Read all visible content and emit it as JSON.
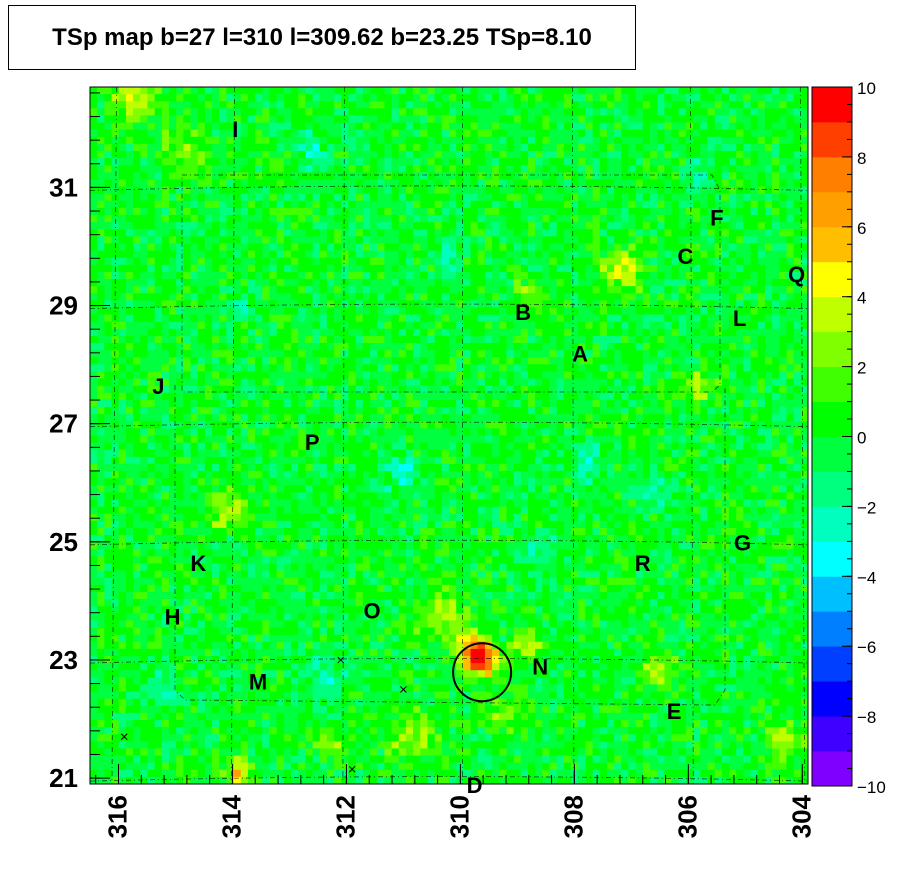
{
  "chart_data": {
    "type": "heatmap",
    "title": "TSp map b=27 l=310 l=309.62 b=23.25 TSp=8.10",
    "xlabel": "",
    "ylabel": "",
    "x_range": [
      316.5,
      303.9
    ],
    "y_range": [
      20.9,
      32.7
    ],
    "x_ticks": [
      316,
      314,
      312,
      310,
      308,
      306,
      304
    ],
    "x_tick_labels": [
      "316",
      "314",
      "312",
      "310",
      "308",
      "306",
      "304"
    ],
    "y_ticks": [
      21,
      23,
      25,
      27,
      29,
      31
    ],
    "y_tick_labels": [
      "21",
      "23",
      "25",
      "27",
      "29",
      "31"
    ],
    "z_range": [
      -10,
      10
    ],
    "z_ticks": [
      -10,
      -8,
      -6,
      -4,
      -2,
      0,
      2,
      4,
      6,
      8,
      10
    ],
    "z_tick_labels": [
      "−10",
      "−8",
      "−6",
      "−4",
      "−2",
      "0",
      "2",
      "4",
      "6",
      "8",
      "10"
    ],
    "palette": [
      "#7f00ff",
      "#3f00ff",
      "#0000ff",
      "#003fff",
      "#007fff",
      "#00bfff",
      "#00ffff",
      "#00ffbf",
      "#00ff7f",
      "#00ff3f",
      "#00ff00",
      "#3fff00",
      "#7fff00",
      "#bfff00",
      "#ffff00",
      "#ffbf00",
      "#ff9f00",
      "#ff7f00",
      "#ff3f00",
      "#ff0000"
    ],
    "background_tsp": 0,
    "hotspots": [
      {
        "l": 309.6,
        "b": 23.0,
        "tsp": 8.5,
        "sigma": 0.18
      },
      {
        "l": 309.8,
        "b": 23.15,
        "tsp": 7.0,
        "sigma": 0.2
      },
      {
        "l": 308.8,
        "b": 23.25,
        "tsp": 5.0,
        "sigma": 0.15
      },
      {
        "l": 310.3,
        "b": 23.8,
        "tsp": 3.5,
        "sigma": 0.3
      },
      {
        "l": 307.2,
        "b": 29.65,
        "tsp": 4.0,
        "sigma": 0.25
      },
      {
        "l": 315.7,
        "b": 32.5,
        "tsp": 4.0,
        "sigma": 0.25
      },
      {
        "l": 313.9,
        "b": 21.1,
        "tsp": 5.0,
        "sigma": 0.15
      },
      {
        "l": 312.3,
        "b": 21.6,
        "tsp": 3.5,
        "sigma": 0.15
      },
      {
        "l": 314.1,
        "b": 25.5,
        "tsp": 3.0,
        "sigma": 0.25
      },
      {
        "l": 306.5,
        "b": 22.8,
        "tsp": 3.5,
        "sigma": 0.2
      },
      {
        "l": 305.8,
        "b": 27.6,
        "tsp": 3.0,
        "sigma": 0.2
      },
      {
        "l": 308.8,
        "b": 29.2,
        "tsp": 2.5,
        "sigma": 0.2
      },
      {
        "l": 310.8,
        "b": 21.7,
        "tsp": 3.0,
        "sigma": 0.3
      },
      {
        "l": 309.3,
        "b": 22.1,
        "tsp": 2.8,
        "sigma": 0.2
      },
      {
        "l": 314.8,
        "b": 31.6,
        "tsp": 2.0,
        "sigma": 0.3
      },
      {
        "l": 304.3,
        "b": 21.6,
        "tsp": 3.0,
        "sigma": 0.25
      }
    ],
    "coldspots": [
      {
        "l": 310.2,
        "b": 29.85,
        "tsp": -3.0,
        "sigma": 0.15
      },
      {
        "l": 311.0,
        "b": 26.2,
        "tsp": -2.8,
        "sigma": 0.2
      },
      {
        "l": 307.8,
        "b": 26.3,
        "tsp": -2.5,
        "sigma": 0.2
      },
      {
        "l": 306.6,
        "b": 25.8,
        "tsp": -2.5,
        "sigma": 0.2
      },
      {
        "l": 313.9,
        "b": 29.0,
        "tsp": -2.0,
        "sigma": 0.2
      },
      {
        "l": 312.3,
        "b": 22.7,
        "tsp": -2.5,
        "sigma": 0.2
      },
      {
        "l": 305.8,
        "b": 31.2,
        "tsp": -2.2,
        "sigma": 0.2
      },
      {
        "l": 315.2,
        "b": 22.6,
        "tsp": -2.0,
        "sigma": 0.2
      },
      {
        "l": 312.6,
        "b": 31.6,
        "tsp": -2.3,
        "sigma": 0.2
      },
      {
        "l": 308.6,
        "b": 24.9,
        "tsp": -2.3,
        "sigma": 0.2
      }
    ],
    "source_labels": [
      {
        "text": "I",
        "l": 313.95,
        "b": 31.95
      },
      {
        "text": "F",
        "l": 305.5,
        "b": 30.45
      },
      {
        "text": "C",
        "l": 306.05,
        "b": 29.8
      },
      {
        "text": "Q",
        "l": 304.1,
        "b": 29.5
      },
      {
        "text": "B",
        "l": 308.9,
        "b": 28.85
      },
      {
        "text": "L",
        "l": 305.1,
        "b": 28.75
      },
      {
        "text": "A",
        "l": 307.9,
        "b": 28.15
      },
      {
        "text": "J",
        "l": 315.3,
        "b": 27.6
      },
      {
        "text": "P",
        "l": 312.6,
        "b": 26.65
      },
      {
        "text": "G",
        "l": 305.05,
        "b": 24.95
      },
      {
        "text": "K",
        "l": 314.6,
        "b": 24.6
      },
      {
        "text": "R",
        "l": 306.8,
        "b": 24.6
      },
      {
        "text": "O",
        "l": 311.55,
        "b": 23.8
      },
      {
        "text": "H",
        "l": 315.05,
        "b": 23.7
      },
      {
        "text": "N",
        "l": 308.6,
        "b": 22.85
      },
      {
        "text": "M",
        "l": 313.55,
        "b": 22.6
      },
      {
        "text": "E",
        "l": 306.25,
        "b": 22.1
      },
      {
        "text": "D",
        "l": 309.75,
        "b": 20.85
      }
    ],
    "test_position": {
      "l": 309.62,
      "b": 23.25,
      "tsp": 8.1
    },
    "sample_markers": [
      {
        "l": 312.1,
        "b": 23.0
      },
      {
        "l": 311.0,
        "b": 22.5
      },
      {
        "l": 315.9,
        "b": 21.7
      },
      {
        "l": 311.9,
        "b": 21.15
      }
    ],
    "grid": true
  }
}
